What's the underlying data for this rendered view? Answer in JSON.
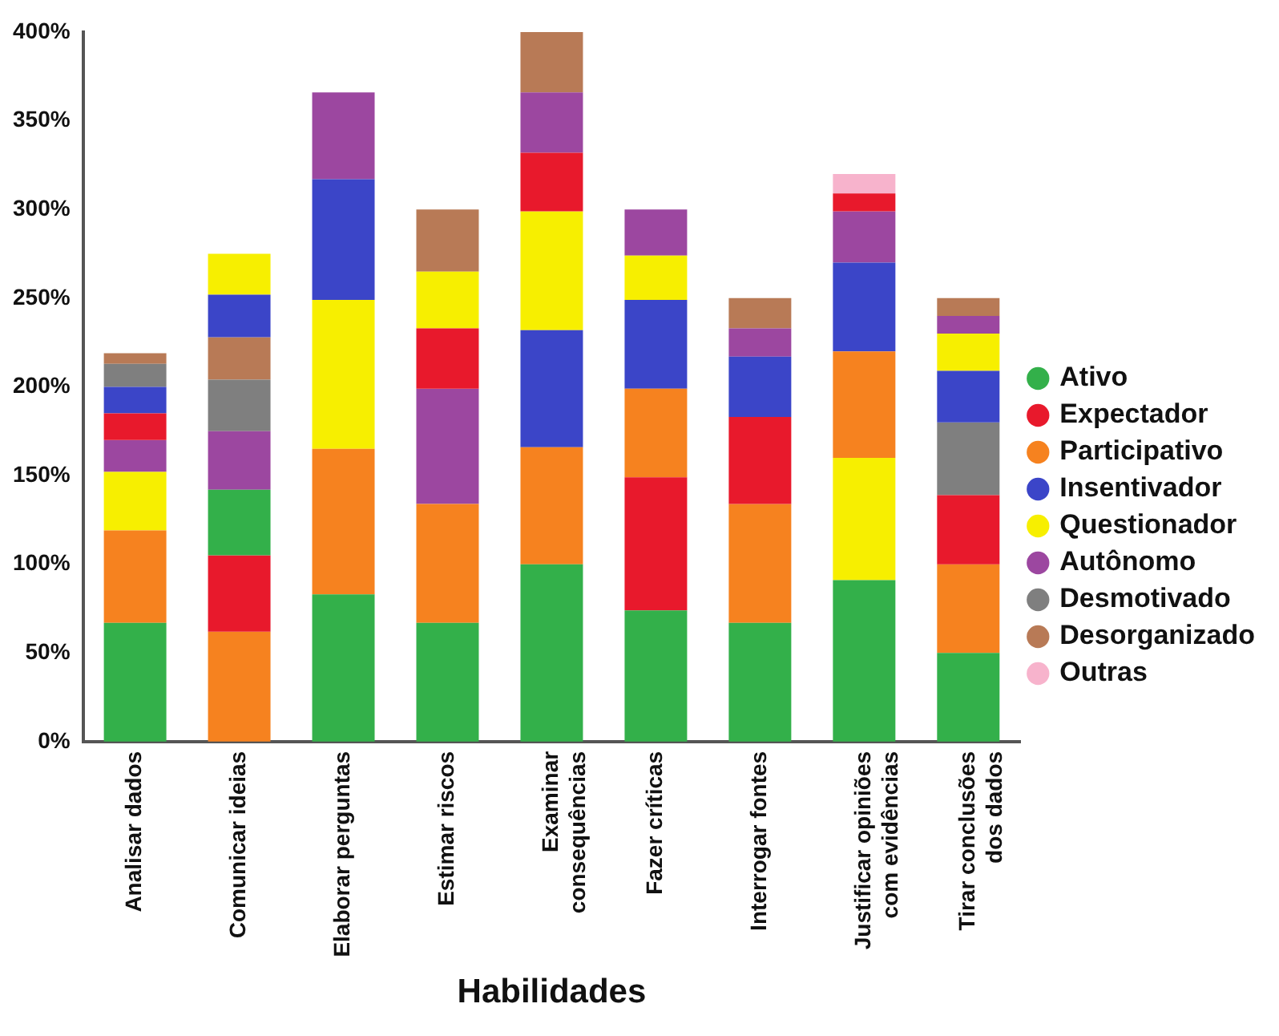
{
  "chart_data": {
    "type": "bar",
    "xlabel": "Habilidades",
    "categories": [
      "Analisar dados",
      "Comunicar ideias",
      "Elaborar perguntas",
      "Estimar riscos",
      "Examinar\nconsequências",
      "Fazer críticas",
      "Interrogar fontes",
      "Justificar opiniões\ncom evidências",
      "Tirar conclusões\ndos dados"
    ],
    "ylim": [
      0,
      400
    ],
    "yticks": [
      {
        "value": 0,
        "label": "0%"
      },
      {
        "value": 50,
        "label": "50%"
      },
      {
        "value": 100,
        "label": "100%"
      },
      {
        "value": 150,
        "label": "150%"
      },
      {
        "value": 200,
        "label": "200%"
      },
      {
        "value": 250,
        "label": "250%"
      },
      {
        "value": 300,
        "label": "300%"
      },
      {
        "value": 350,
        "label": "350%"
      },
      {
        "value": 400,
        "label": "400%"
      }
    ],
    "grid": false,
    "legend": "right",
    "marker": "circle",
    "series": [
      {
        "name": "Ativo",
        "color": "#33b04a",
        "values": [
          67,
          37,
          83,
          67,
          100,
          74,
          67,
          91,
          50
        ],
        "base": [
          0,
          105,
          0,
          0,
          0,
          0,
          0,
          0,
          0
        ]
      },
      {
        "name": "Expectador",
        "color": "#e8192c",
        "values": [
          15,
          43,
          null,
          34,
          33,
          75,
          49,
          10,
          39
        ],
        "base": [
          170,
          62,
          null,
          199,
          299,
          74,
          134,
          299,
          100
        ]
      },
      {
        "name": "Participativo",
        "color": "#f6821f",
        "values": [
          52,
          62,
          82,
          67,
          66,
          50,
          67,
          60,
          50
        ],
        "base": [
          67,
          0,
          83,
          67,
          100,
          149,
          67,
          160,
          50
        ]
      },
      {
        "name": "Insentivador",
        "color": "#3b45c8",
        "values": [
          15,
          24,
          68,
          null,
          66,
          50,
          34,
          50,
          29
        ],
        "base": [
          185,
          228,
          249,
          null,
          166,
          199,
          183,
          220,
          180
        ]
      },
      {
        "name": "Questionador",
        "color": "#f7ef00",
        "values": [
          33,
          23,
          84,
          32,
          67,
          25,
          null,
          69,
          21
        ],
        "base": [
          119,
          252,
          165,
          233,
          232,
          249,
          null,
          91,
          209
        ]
      },
      {
        "name": "Autônomo",
        "color": "#9c47a0",
        "values": [
          18,
          33,
          49,
          65,
          34,
          26,
          16,
          29,
          10
        ],
        "base": [
          152,
          142,
          317,
          134,
          332,
          274,
          217,
          270,
          230
        ]
      },
      {
        "name": "Desmotivado",
        "color": "#7f7f7f",
        "values": [
          13,
          29,
          null,
          null,
          null,
          null,
          null,
          null,
          41
        ],
        "base": [
          200,
          175,
          null,
          null,
          null,
          null,
          null,
          null,
          139
        ]
      },
      {
        "name": "Desorganizado",
        "color": "#b87a56",
        "values": [
          6,
          24,
          null,
          35,
          34,
          null,
          17,
          null,
          10
        ],
        "base": [
          213,
          204,
          null,
          265,
          366,
          null,
          233,
          null,
          240
        ]
      },
      {
        "name": "Outras",
        "color": "#f7b3cc",
        "values": [
          null,
          null,
          null,
          null,
          null,
          null,
          null,
          11,
          null
        ],
        "base": [
          null,
          null,
          null,
          null,
          null,
          null,
          null,
          309,
          null
        ]
      }
    ]
  }
}
